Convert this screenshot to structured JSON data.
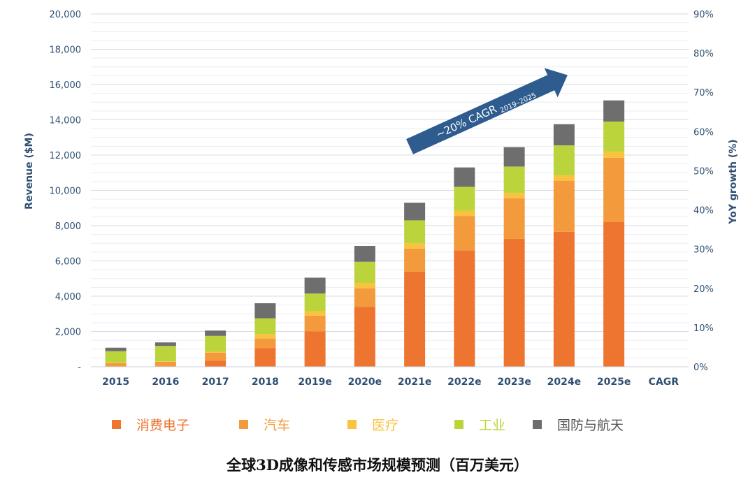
{
  "title": "全球3D成像和传感市场规模预测（百万美元）",
  "chart_data": {
    "type": "bar",
    "stacked": true,
    "categories": [
      "2015",
      "2016",
      "2017",
      "2018",
      "2019e",
      "2020e",
      "2021e",
      "2022e",
      "2023e",
      "2024e",
      "2025e",
      "CAGR"
    ],
    "series": [
      {
        "name": "消费电子",
        "color": "#ED7530",
        "values": [
          0,
          0,
          350,
          1050,
          2000,
          3400,
          5400,
          6600,
          7250,
          7650,
          8200,
          null
        ]
      },
      {
        "name": "汽车",
        "color": "#F29A3C",
        "values": [
          200,
          280,
          450,
          550,
          900,
          1050,
          1300,
          1950,
          2300,
          2900,
          3650,
          null
        ]
      },
      {
        "name": "医疗",
        "color": "#F9C340",
        "values": [
          30,
          30,
          50,
          250,
          250,
          300,
          300,
          300,
          300,
          300,
          350,
          null
        ]
      },
      {
        "name": "工业",
        "color": "#BCD43C",
        "values": [
          650,
          870,
          900,
          900,
          1000,
          1200,
          1300,
          1350,
          1500,
          1700,
          1700,
          null
        ]
      },
      {
        "name": "国防与航天",
        "color": "#6E6E6E",
        "values": [
          200,
          200,
          300,
          850,
          900,
          900,
          1000,
          1100,
          1100,
          1200,
          1200,
          null
        ]
      }
    ],
    "ylabel": "Revenue ($M)",
    "ylim": [
      0,
      20000
    ],
    "yticks": [
      "-",
      "2,000",
      "4,000",
      "6,000",
      "8,000",
      "10,000",
      "12,000",
      "14,000",
      "16,000",
      "18,000",
      "20,000"
    ],
    "y2label": "YoY growth (%)",
    "y2lim": [
      0,
      90
    ],
    "y2ticks": [
      "0%",
      "10%",
      "20%",
      "30%",
      "40%",
      "50%",
      "60%",
      "70%",
      "80%",
      "90%"
    ],
    "grid": true,
    "legend_position": "bottom",
    "annotation": {
      "text": "~20% CAGR",
      "subscript": "2019–2025",
      "color": "#2E5C8E"
    }
  }
}
